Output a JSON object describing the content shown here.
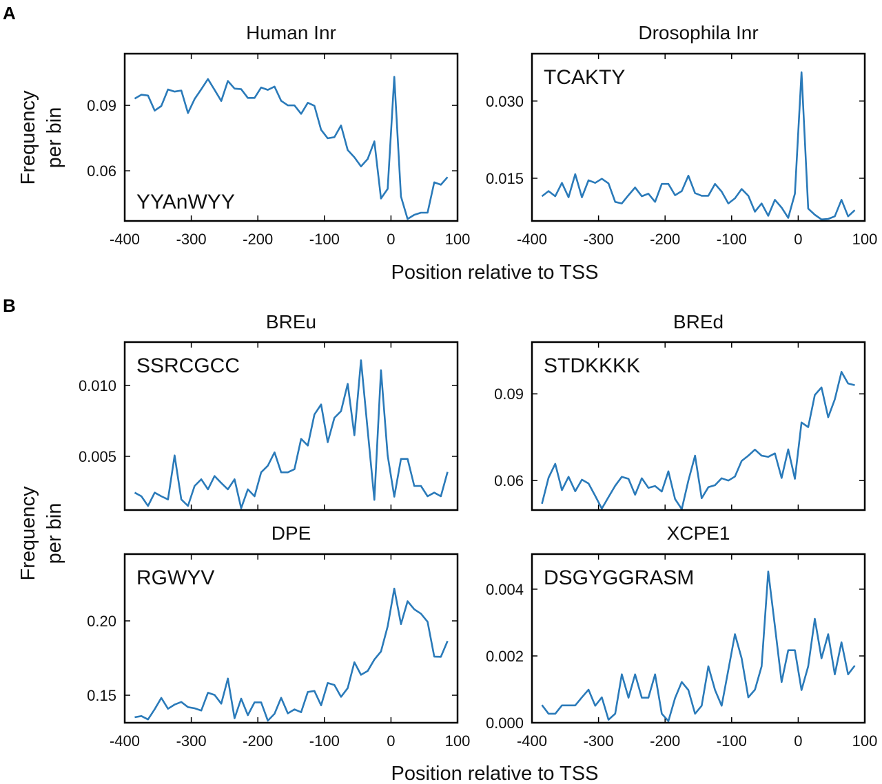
{
  "figure": {
    "panel_letters": [
      "A",
      "B"
    ],
    "xlabel": "Position relative to TSS",
    "ylabel_lines": [
      "Frequency",
      "per bin"
    ],
    "line_color": "#2a7ab9"
  },
  "chart_data": [
    {
      "type": "line",
      "panel": "A",
      "title": "Human Inr",
      "motif": "YYAnWYY",
      "xlim": [
        -400,
        100
      ],
      "ylim": [
        0.037,
        0.1137
      ],
      "xticks": [
        -400,
        -300,
        -200,
        -100,
        0,
        100
      ],
      "yticks": [
        0.06,
        0.09
      ],
      "ytick_labels": [
        "0.06",
        "0.09"
      ],
      "grid": false,
      "x": [
        -385,
        -375,
        -365,
        -355,
        -345,
        -335,
        -325,
        -315,
        -305,
        -295,
        -285,
        -275,
        -265,
        -255,
        -245,
        -235,
        -225,
        -215,
        -205,
        -195,
        -185,
        -175,
        -165,
        -155,
        -145,
        -135,
        -125,
        -115,
        -105,
        -95,
        -85,
        -75,
        -65,
        -55,
        -45,
        -35,
        -25,
        -15,
        -5,
        5,
        15,
        25,
        35,
        45,
        55,
        65,
        75,
        85
      ],
      "y": [
        0.0931,
        0.0949,
        0.0945,
        0.0876,
        0.0897,
        0.0973,
        0.0963,
        0.0968,
        0.0865,
        0.0929,
        0.0974,
        0.1021,
        0.0971,
        0.092,
        0.1012,
        0.0977,
        0.0974,
        0.0934,
        0.0934,
        0.0982,
        0.0971,
        0.0986,
        0.0921,
        0.09,
        0.09,
        0.0861,
        0.0912,
        0.0898,
        0.0788,
        0.0749,
        0.0754,
        0.0808,
        0.0695,
        0.0662,
        0.062,
        0.0654,
        0.0735,
        0.0473,
        0.0517,
        0.1031,
        0.0482,
        0.0379,
        0.0398,
        0.0408,
        0.0408,
        0.0547,
        0.0536,
        0.0571
      ]
    },
    {
      "type": "line",
      "panel": "A",
      "title": "Drosophila Inr",
      "motif": "TCAKTY",
      "xlim": [
        -400,
        100
      ],
      "ylim": [
        0.0067,
        0.0392
      ],
      "xticks": [
        -400,
        -300,
        -200,
        -100,
        0,
        100
      ],
      "yticks": [
        0.015,
        0.03
      ],
      "ytick_labels": [
        "0.015",
        "0.030"
      ],
      "grid": false,
      "x": [
        -385,
        -375,
        -365,
        -355,
        -345,
        -335,
        -325,
        -315,
        -305,
        -295,
        -285,
        -275,
        -265,
        -255,
        -245,
        -235,
        -225,
        -215,
        -205,
        -195,
        -185,
        -175,
        -165,
        -155,
        -145,
        -135,
        -125,
        -115,
        -105,
        -95,
        -85,
        -75,
        -65,
        -55,
        -45,
        -35,
        -25,
        -15,
        -5,
        5,
        15,
        25,
        35,
        45,
        55,
        65,
        75,
        85
      ],
      "y": [
        0.0115,
        0.0125,
        0.0115,
        0.0141,
        0.0113,
        0.0158,
        0.0113,
        0.0146,
        0.0141,
        0.0149,
        0.014,
        0.0104,
        0.0101,
        0.0117,
        0.0132,
        0.0115,
        0.012,
        0.0104,
        0.0139,
        0.0139,
        0.0117,
        0.0125,
        0.0155,
        0.0121,
        0.0116,
        0.0116,
        0.0139,
        0.0124,
        0.0101,
        0.0111,
        0.0129,
        0.0116,
        0.0085,
        0.0101,
        0.0077,
        0.0108,
        0.0093,
        0.0073,
        0.012,
        0.0356,
        0.0091,
        0.0079,
        0.007,
        0.0071,
        0.0076,
        0.0108,
        0.0076,
        0.0088
      ]
    },
    {
      "type": "line",
      "panel": "B",
      "title": "BREu",
      "motif": "SSRCGCC",
      "xlim": [
        -400,
        100
      ],
      "ylim": [
        0.00121,
        0.01306
      ],
      "xticks": [
        -400,
        -300,
        -200,
        -100,
        0,
        100
      ],
      "yticks": [
        0.005,
        0.01
      ],
      "ytick_labels": [
        "0.005",
        "0.010"
      ],
      "grid": false,
      "x": [
        -385,
        -375,
        -365,
        -355,
        -345,
        -335,
        -325,
        -315,
        -305,
        -295,
        -285,
        -275,
        -265,
        -255,
        -245,
        -235,
        -225,
        -215,
        -205,
        -195,
        -185,
        -175,
        -165,
        -155,
        -145,
        -135,
        -125,
        -115,
        -105,
        -95,
        -85,
        -75,
        -65,
        -55,
        -45,
        -35,
        -25,
        -15,
        -5,
        5,
        15,
        25,
        35,
        45,
        55,
        65,
        75,
        85
      ],
      "y": [
        0.00244,
        0.00218,
        0.0015,
        0.00244,
        0.00218,
        0.00196,
        0.00506,
        0.00196,
        0.0015,
        0.00291,
        0.00338,
        0.00267,
        0.00361,
        0.00312,
        0.00267,
        0.00338,
        0.00134,
        0.00267,
        0.00218,
        0.00387,
        0.00434,
        0.00528,
        0.00387,
        0.00387,
        0.00409,
        0.00623,
        0.00576,
        0.00795,
        0.00866,
        0.006,
        0.00772,
        0.00819,
        0.01011,
        0.00649,
        0.01178,
        0.00684,
        0.00193,
        0.01108,
        0.00506,
        0.00215,
        0.00482,
        0.00482,
        0.00291,
        0.00291,
        0.00218,
        0.00244,
        0.00218,
        0.0039
      ]
    },
    {
      "type": "line",
      "panel": "B",
      "title": "BREd",
      "motif": "STDKKKK",
      "xlim": [
        -400,
        100
      ],
      "ylim": [
        0.0498,
        0.1079
      ],
      "xticks": [
        -400,
        -300,
        -200,
        -100,
        0,
        100
      ],
      "yticks": [
        0.06,
        0.09
      ],
      "ytick_labels": [
        "0.06",
        "0.09"
      ],
      "grid": false,
      "x": [
        -385,
        -375,
        -365,
        -355,
        -345,
        -335,
        -325,
        -315,
        -305,
        -295,
        -285,
        -275,
        -265,
        -255,
        -245,
        -235,
        -225,
        -215,
        -205,
        -195,
        -185,
        -175,
        -165,
        -155,
        -145,
        -135,
        -125,
        -115,
        -105,
        -95,
        -85,
        -75,
        -65,
        -55,
        -45,
        -35,
        -25,
        -15,
        -5,
        5,
        15,
        25,
        35,
        45,
        55,
        65,
        75,
        85
      ],
      "y": [
        0.052,
        0.061,
        0.0658,
        0.0567,
        0.0613,
        0.0563,
        0.0603,
        0.059,
        0.0547,
        0.0503,
        0.0543,
        0.0582,
        0.0613,
        0.0606,
        0.0551,
        0.0608,
        0.0575,
        0.0581,
        0.0562,
        0.0632,
        0.0536,
        0.0501,
        0.06,
        0.0686,
        0.0539,
        0.0577,
        0.0584,
        0.0608,
        0.06,
        0.0614,
        0.0668,
        0.0686,
        0.0707,
        0.0686,
        0.0682,
        0.0694,
        0.0609,
        0.0708,
        0.0606,
        0.0801,
        0.0785,
        0.0896,
        0.0922,
        0.0819,
        0.0881,
        0.0976,
        0.0936,
        0.093
      ]
    },
    {
      "type": "line",
      "panel": "B",
      "title": "DPE",
      "motif": "RGWYV",
      "xlim": [
        -400,
        100
      ],
      "ylim": [
        0.1315,
        0.2449
      ],
      "xticks": [
        -400,
        -300,
        -200,
        -100,
        0,
        100
      ],
      "yticks": [
        0.15,
        0.2
      ],
      "ytick_labels": [
        "0.15",
        "0.20"
      ],
      "grid": false,
      "x": [
        -385,
        -375,
        -365,
        -355,
        -345,
        -335,
        -325,
        -315,
        -305,
        -295,
        -285,
        -275,
        -265,
        -255,
        -245,
        -235,
        -225,
        -215,
        -205,
        -195,
        -185,
        -175,
        -165,
        -155,
        -145,
        -135,
        -125,
        -115,
        -105,
        -95,
        -85,
        -75,
        -65,
        -55,
        -45,
        -35,
        -25,
        -15,
        -5,
        5,
        15,
        25,
        35,
        45,
        55,
        65,
        75,
        85
      ],
      "y": [
        0.1352,
        0.136,
        0.1337,
        0.1406,
        0.1482,
        0.1409,
        0.1437,
        0.1455,
        0.142,
        0.1412,
        0.1397,
        0.1517,
        0.1502,
        0.1443,
        0.1612,
        0.1345,
        0.1477,
        0.1366,
        0.1452,
        0.1452,
        0.1329,
        0.1375,
        0.1483,
        0.1378,
        0.1405,
        0.1386,
        0.1522,
        0.1529,
        0.1432,
        0.1582,
        0.1569,
        0.1489,
        0.1548,
        0.1722,
        0.1637,
        0.1663,
        0.174,
        0.1794,
        0.1963,
        0.2217,
        0.1978,
        0.2132,
        0.2078,
        0.2048,
        0.1994,
        0.176,
        0.1758,
        0.1865
      ]
    },
    {
      "type": "line",
      "panel": "B",
      "title": "XCPE1",
      "motif": "DSGYGGRASM",
      "xlim": [
        -400,
        100
      ],
      "ylim": [
        0.0,
        0.00505
      ],
      "xticks": [
        -400,
        -300,
        -200,
        -100,
        0,
        100
      ],
      "yticks": [
        0.0,
        0.002,
        0.004
      ],
      "ytick_labels": [
        "0.000",
        "0.002",
        "0.004"
      ],
      "grid": false,
      "x": [
        -385,
        -375,
        -365,
        -355,
        -345,
        -335,
        -325,
        -315,
        -305,
        -295,
        -285,
        -275,
        -265,
        -255,
        -245,
        -235,
        -225,
        -215,
        -205,
        -195,
        -185,
        -175,
        -165,
        -155,
        -145,
        -135,
        -125,
        -115,
        -105,
        -95,
        -85,
        -75,
        -65,
        -55,
        -45,
        -35,
        -25,
        -15,
        -5,
        5,
        15,
        25,
        35,
        45,
        55,
        65,
        75,
        85
      ],
      "y": [
        0.00053,
        0.00027,
        0.00027,
        0.00052,
        0.00052,
        0.00052,
        0.00076,
        0.00099,
        0.00051,
        0.00076,
        9e-05,
        0.00027,
        0.00145,
        0.00075,
        0.00145,
        0.00075,
        0.00075,
        0.00145,
        0.00027,
        5e-05,
        0.00074,
        0.00122,
        0.00098,
        0.00027,
        0.00051,
        0.00169,
        0.00098,
        0.00051,
        0.00158,
        0.00265,
        0.00193,
        0.00076,
        0.00099,
        0.00169,
        0.00453,
        0.00289,
        0.00122,
        0.00217,
        0.00217,
        0.00098,
        0.00169,
        0.00311,
        0.00193,
        0.00265,
        0.00145,
        0.00241,
        0.00145,
        0.00171
      ]
    }
  ]
}
